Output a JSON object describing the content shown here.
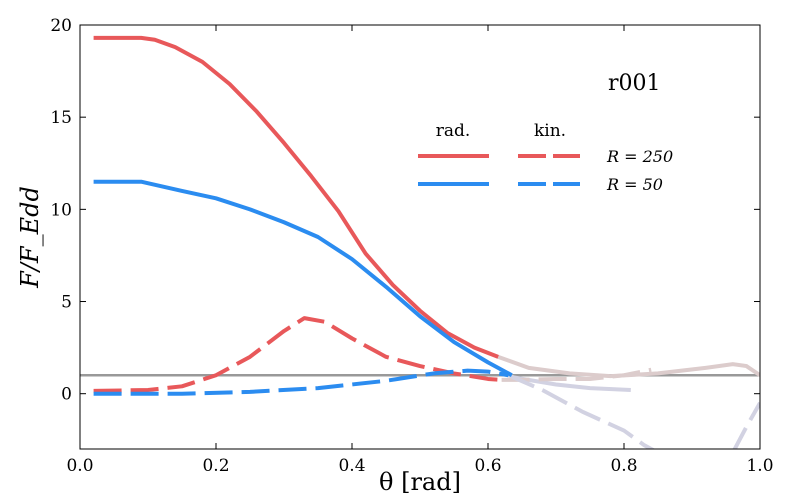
{
  "chart_data": {
    "type": "line",
    "xlabel": "θ [rad]",
    "ylabel": "F/F_Edd",
    "xlim": [
      0,
      1
    ],
    "ylim": [
      -3,
      20
    ],
    "xticks": [
      "0.0",
      "0.2",
      "0.4",
      "0.6",
      "0.8",
      "1.0"
    ],
    "xtick_values": [
      0,
      0.2,
      0.4,
      0.6,
      0.8,
      1.0
    ],
    "yticks": [
      "0",
      "5",
      "10",
      "15",
      "20"
    ],
    "ytick_values": [
      0,
      5,
      10,
      15,
      20
    ],
    "annotation": "r001",
    "legend": {
      "placement": "top-right",
      "col_headers": [
        "rad.",
        "kin."
      ],
      "rows": [
        "R = 250",
        "R = 50"
      ]
    },
    "reference_line": {
      "y": 1,
      "color": "#999999"
    },
    "series": [
      {
        "name": "rad. R = 250",
        "color": "#e8585a",
        "dash": false,
        "x": [
          0.02,
          0.09,
          0.11,
          0.14,
          0.18,
          0.22,
          0.26,
          0.3,
          0.34,
          0.38,
          0.42,
          0.46,
          0.5,
          0.54,
          0.58,
          0.615
        ],
        "y": [
          19.3,
          19.3,
          19.2,
          18.8,
          18.0,
          16.8,
          15.3,
          13.6,
          11.8,
          9.9,
          7.6,
          5.9,
          4.5,
          3.3,
          2.5,
          2.0
        ],
        "faded": {
          "color": "#dccccc",
          "x": [
            0.615,
            0.66,
            0.72,
            0.78,
            0.85,
            0.92,
            0.96,
            0.98,
            1.0
          ],
          "y": [
            2.0,
            1.4,
            1.1,
            0.95,
            1.1,
            1.4,
            1.6,
            1.5,
            1.0
          ]
        }
      },
      {
        "name": "rad. R = 50",
        "color": "#2b8cf0",
        "dash": false,
        "x": [
          0.02,
          0.09,
          0.15,
          0.2,
          0.25,
          0.3,
          0.35,
          0.4,
          0.45,
          0.5,
          0.55,
          0.6,
          0.635
        ],
        "y": [
          11.5,
          11.5,
          11.0,
          10.6,
          10.0,
          9.3,
          8.5,
          7.3,
          5.8,
          4.2,
          2.8,
          1.7,
          1.0
        ],
        "faded": {
          "color": "#d2d2e2",
          "x": [
            0.635,
            0.7,
            0.75,
            0.81
          ],
          "y": [
            0.9,
            0.5,
            0.3,
            0.2
          ]
        }
      },
      {
        "name": "kin. R = 250",
        "color": "#e8585a",
        "dash": true,
        "x": [
          0.02,
          0.1,
          0.15,
          0.2,
          0.25,
          0.3,
          0.33,
          0.36,
          0.4,
          0.45,
          0.5,
          0.55,
          0.6,
          0.62
        ],
        "y": [
          0.15,
          0.2,
          0.4,
          1.0,
          2.0,
          3.4,
          4.1,
          3.9,
          3.0,
          2.0,
          1.5,
          1.1,
          0.8,
          0.75
        ],
        "faded": {
          "color": "#dccccc",
          "x": [
            0.62,
            0.65,
            0.7,
            0.75,
            0.8,
            0.84
          ],
          "y": [
            0.75,
            0.75,
            0.8,
            0.8,
            1.0,
            1.3
          ]
        }
      },
      {
        "name": "kin. R = 50",
        "color": "#2b8cf0",
        "dash": true,
        "x": [
          0.02,
          0.15,
          0.25,
          0.35,
          0.45,
          0.52,
          0.57,
          0.6,
          0.63
        ],
        "y": [
          0.0,
          0.0,
          0.1,
          0.3,
          0.7,
          1.1,
          1.25,
          1.2,
          1.0
        ],
        "faded": {
          "color": "#d2d2e2",
          "x": [
            0.63,
            0.68,
            0.74,
            0.8,
            0.83,
            0.85
          ],
          "y": [
            1.0,
            0.2,
            -1.0,
            -2.0,
            -2.8,
            -3.2
          ],
          "x2": [
            0.96,
            0.98,
            1.0
          ],
          "y2": [
            -3.2,
            -1.8,
            -0.5
          ]
        }
      }
    ]
  }
}
